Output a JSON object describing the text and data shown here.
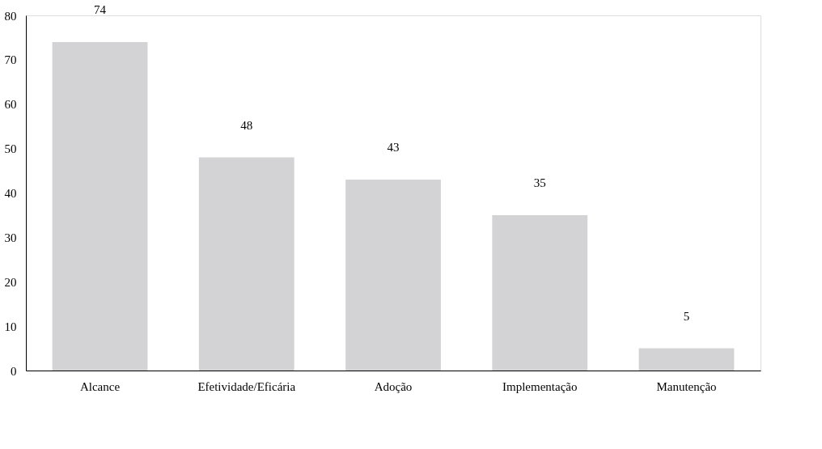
{
  "chart_data": {
    "type": "bar",
    "categories": [
      "Alcance",
      "Efetividade/Eficária",
      "Adoção",
      "Implementação",
      "Manutenção"
    ],
    "values": [
      74,
      48,
      43,
      35,
      5
    ],
    "color": "#d3d3d5",
    "ylim": [
      0,
      80
    ],
    "yticks": [
      0,
      10,
      20,
      30,
      40,
      50,
      60,
      70,
      80
    ],
    "grid": false,
    "data_labels": true
  }
}
